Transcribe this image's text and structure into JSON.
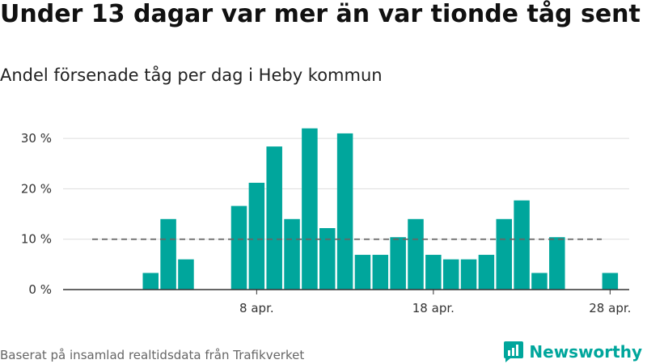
{
  "title": "Under 13 dagar var mer än var tionde tåg sent",
  "subtitle": "Andel försenade tåg per dag i Heby kommun",
  "footer": "Baserat på insamlad realtidsdata från Trafikverket",
  "brand": {
    "name": "Newsworthy",
    "icon": "newsworthy-logo-icon"
  },
  "colors": {
    "bar": "#00a69c",
    "reference_line": "#666666",
    "grid": "#dddddd",
    "axis": "#333333",
    "brand": "#00a69c"
  },
  "chart_data": {
    "type": "bar",
    "x": [
      "2023-03-30",
      "2023-03-31",
      "2023-04-01",
      "2023-04-02",
      "2023-04-03",
      "2023-04-04",
      "2023-04-05",
      "2023-04-06",
      "2023-04-07",
      "2023-04-08",
      "2023-04-09",
      "2023-04-10",
      "2023-04-11",
      "2023-04-12",
      "2023-04-13",
      "2023-04-14",
      "2023-04-15",
      "2023-04-16",
      "2023-04-17",
      "2023-04-18",
      "2023-04-19",
      "2023-04-20",
      "2023-04-21",
      "2023-04-22",
      "2023-04-23",
      "2023-04-24",
      "2023-04-25",
      "2023-04-26",
      "2023-04-27",
      "2023-04-28",
      "2023-04-29"
    ],
    "values": [
      0,
      0,
      0,
      3.3,
      14,
      6,
      0,
      0,
      16.6,
      21.2,
      28.4,
      14,
      32,
      12.2,
      31,
      6.9,
      6.9,
      10.4,
      14,
      6.9,
      6,
      6,
      6.9,
      14,
      17.7,
      3.3,
      10.4,
      0,
      0,
      3.3,
      null
    ],
    "reference_line": 10,
    "ylim": [
      0,
      35
    ],
    "yticks": [
      0,
      10,
      20,
      30
    ],
    "ytick_labels": [
      "0 %",
      "10 %",
      "20 %",
      "30 %"
    ],
    "xticks": [
      "2023-04-08",
      "2023-04-18",
      "2023-04-28"
    ],
    "xtick_labels": [
      "8 apr.",
      "18 apr.",
      "28 apr."
    ],
    "grid": true,
    "legend": "none"
  }
}
